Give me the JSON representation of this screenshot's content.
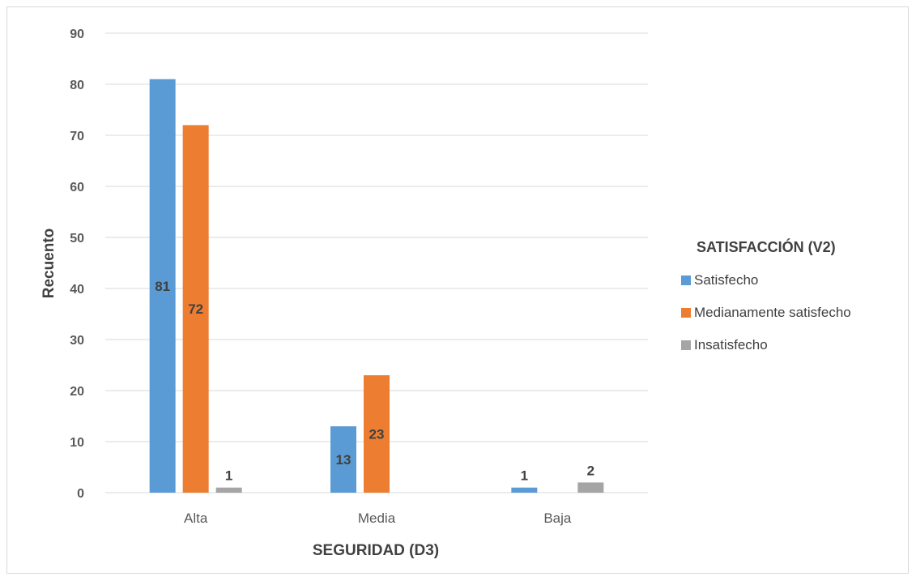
{
  "chart_data": {
    "type": "bar",
    "categories": [
      "Alta",
      "Media",
      "Baja"
    ],
    "series": [
      {
        "name": "Satisfecho",
        "values": [
          81,
          13,
          1
        ],
        "color": "#5B9BD5"
      },
      {
        "name": "Medianamente satisfecho",
        "values": [
          72,
          23,
          0
        ],
        "color": "#ED7D31"
      },
      {
        "name": "Insatisfecho",
        "values": [
          1,
          0,
          2
        ],
        "color": "#A5A5A5"
      }
    ],
    "data_labels": [
      [
        "81",
        "13",
        "1"
      ],
      [
        "72",
        "23",
        ""
      ],
      [
        "1",
        "",
        "2"
      ]
    ],
    "xlabel": "SEGURIDAD (D3)",
    "ylabel": "Recuento",
    "ylim": [
      0,
      90
    ],
    "yticks": [
      0,
      10,
      20,
      30,
      40,
      50,
      60,
      70,
      80,
      90
    ],
    "legend_title": "SATISFACCIÓN (V2)",
    "legend_position": "right",
    "grid": true
  }
}
